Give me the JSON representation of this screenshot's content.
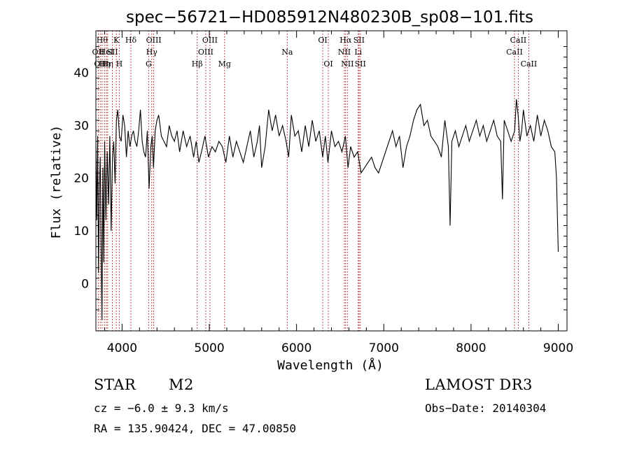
{
  "chart_data": {
    "type": "line",
    "title": "spec−56721−HD085912N480230B_sp08−101.fits",
    "xlabel": "Wavelength (Å)",
    "ylabel": "Flux (relative)",
    "xlim": [
      3700,
      9100
    ],
    "ylim": [
      -9,
      48
    ],
    "xticks": [
      4000,
      5000,
      6000,
      7000,
      8000,
      9000
    ],
    "yticks": [
      0,
      10,
      20,
      30,
      40
    ],
    "grid": false,
    "series_color": "#000000",
    "line_marker_color": "#a01010",
    "series": [
      {
        "x": [
          3700,
          3710,
          3720,
          3730,
          3740,
          3750,
          3760,
          3770,
          3780,
          3790,
          3800,
          3815,
          3830,
          3845,
          3860,
          3875,
          3890,
          3905,
          3920,
          3935,
          3950,
          3970,
          3990,
          4010,
          4030,
          4050,
          4070,
          4090,
          4110,
          4130,
          4150,
          4170,
          4190,
          4210,
          4230,
          4250,
          4270,
          4290,
          4310,
          4330,
          4345,
          4360,
          4380,
          4400,
          4420,
          4450,
          4480,
          4510,
          4540,
          4570,
          4600,
          4630,
          4660,
          4700,
          4740,
          4780,
          4820,
          4850,
          4880,
          4910,
          4950,
          4990,
          5030,
          5070,
          5110,
          5150,
          5190,
          5230,
          5270,
          5310,
          5350,
          5390,
          5430,
          5470,
          5510,
          5550,
          5575,
          5600,
          5640,
          5680,
          5720,
          5760,
          5800,
          5840,
          5880,
          5910,
          5940,
          5980,
          6020,
          6060,
          6100,
          6140,
          6180,
          6220,
          6260,
          6300,
          6330,
          6360,
          6400,
          6440,
          6480,
          6520,
          6560,
          6590,
          6620,
          6660,
          6700,
          6740,
          6780,
          6820,
          6860,
          6900,
          6940,
          6980,
          7020,
          7060,
          7100,
          7140,
          7180,
          7220,
          7260,
          7300,
          7340,
          7380,
          7420,
          7460,
          7500,
          7540,
          7580,
          7620,
          7660,
          7700,
          7740,
          7760,
          7780,
          7820,
          7860,
          7900,
          7940,
          7980,
          8020,
          8060,
          8100,
          8140,
          8180,
          8220,
          8260,
          8300,
          8340,
          8360,
          8380,
          8420,
          8460,
          8500,
          8520,
          8540,
          8560,
          8580,
          8600,
          8640,
          8680,
          8720,
          8760,
          8800,
          8840,
          8880,
          8920,
          8960,
          8980,
          9000
        ],
        "y": [
          26,
          12,
          28,
          2,
          18,
          24,
          6,
          -7,
          22,
          4,
          27,
          12,
          25,
          15,
          28,
          10,
          24,
          27,
          19,
          31,
          33,
          28,
          27,
          32,
          30,
          24,
          29,
          26,
          28,
          29,
          27,
          26,
          29,
          33,
          27,
          25,
          24,
          29,
          18,
          26,
          28,
          22,
          29,
          31,
          32,
          28,
          27,
          26,
          30,
          28,
          27,
          29,
          25,
          29,
          26,
          28,
          24,
          27,
          23,
          25,
          28,
          24,
          26,
          25,
          27,
          26,
          23,
          28,
          24,
          27,
          25,
          23,
          26,
          29,
          24,
          27,
          30,
          22,
          26,
          33,
          29,
          32,
          28,
          30,
          27,
          24,
          32,
          28,
          29,
          25,
          30,
          26,
          31,
          27,
          29,
          24,
          28,
          23,
          29,
          26,
          27,
          25,
          28,
          22,
          26,
          24,
          25,
          21,
          22,
          23,
          24,
          22,
          21,
          23,
          25,
          27,
          29,
          26,
          28,
          22,
          26,
          28,
          31,
          33,
          34,
          30,
          31,
          28,
          27,
          26,
          24,
          31,
          26,
          11,
          27,
          29,
          26,
          28,
          30,
          27,
          29,
          31,
          28,
          30,
          27,
          29,
          31,
          28,
          27,
          16,
          31,
          29,
          27,
          29,
          35,
          32,
          27,
          29,
          33,
          28,
          30,
          27,
          32,
          28,
          31,
          29,
          26,
          25,
          20,
          6
        ]
      }
    ],
    "line_markers": [
      {
        "x": 3727,
        "label": "OII",
        "row": 2
      },
      {
        "x": 3750,
        "label": "OII",
        "row": 3
      },
      {
        "x": 3771,
        "label": "Hθ",
        "row": 1
      },
      {
        "x": 3798,
        "label": "Hη",
        "row": 3
      },
      {
        "x": 3820,
        "label": "HeI",
        "row": 2
      },
      {
        "x": 3835,
        "label": "Hη",
        "row": 3
      },
      {
        "x": 3889,
        "label": "SII",
        "row": 2
      },
      {
        "x": 3934,
        "label": "K",
        "row": 1
      },
      {
        "x": 3968,
        "label": "H",
        "row": 3
      },
      {
        "x": 4101,
        "label": "Hδ",
        "row": 1
      },
      {
        "x": 4305,
        "label": "G",
        "row": 3
      },
      {
        "x": 4340,
        "label": "Hγ",
        "row": 2
      },
      {
        "x": 4363,
        "label": "OIII",
        "row": 1
      },
      {
        "x": 4861,
        "label": "Hβ",
        "row": 3
      },
      {
        "x": 4959,
        "label": "OIII",
        "row": 2
      },
      {
        "x": 5007,
        "label": "OIII",
        "row": 1
      },
      {
        "x": 5175,
        "label": "Mg",
        "row": 3
      },
      {
        "x": 5893,
        "label": "Na",
        "row": 2
      },
      {
        "x": 6300,
        "label": "OI",
        "row": 1
      },
      {
        "x": 6364,
        "label": "OI",
        "row": 3
      },
      {
        "x": 6548,
        "label": "NII",
        "row": 2
      },
      {
        "x": 6563,
        "label": "Hα",
        "row": 1
      },
      {
        "x": 6583,
        "label": "NII",
        "row": 3
      },
      {
        "x": 6707,
        "label": "Li",
        "row": 2
      },
      {
        "x": 6716,
        "label": "SII",
        "row": 1
      },
      {
        "x": 6731,
        "label": "SII",
        "row": 3
      },
      {
        "x": 8498,
        "label": "CaII",
        "row": 2
      },
      {
        "x": 8542,
        "label": "CaII",
        "row": 1
      },
      {
        "x": 8662,
        "label": "CaII",
        "row": 3
      }
    ]
  },
  "info": {
    "object_class": "STAR",
    "subclass": "M2",
    "survey": "LAMOST DR3",
    "cz": "cz = −6.0 ± 9.3 km/s",
    "obs_date": "Obs−Date: 20140304",
    "coords": "RA = 135.90424, DEC =  47.00850"
  }
}
